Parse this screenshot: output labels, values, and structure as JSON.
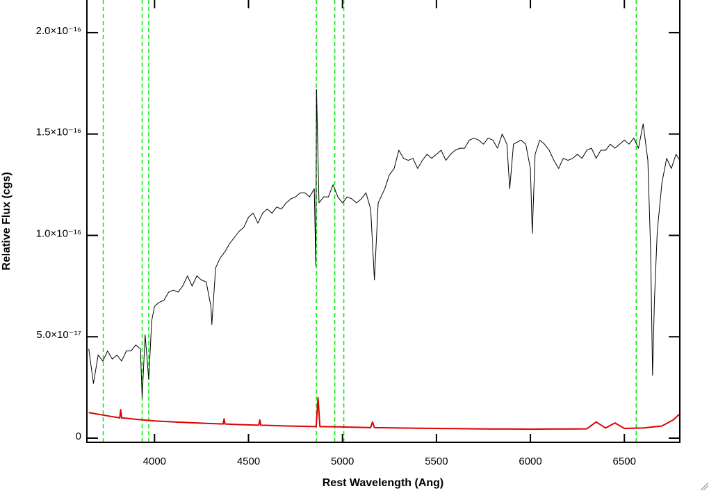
{
  "chart_data": {
    "type": "line",
    "xlabel": "Rest Wavelength (Ang)",
    "ylabel": "Relative Flux (cgs)",
    "xlim": [
      3640,
      6795
    ],
    "ylim": [
      -2.06e-18,
      2.161e-16
    ],
    "xticks": [
      4000,
      4500,
      5000,
      5500,
      6000,
      6500
    ],
    "yticks": [
      0,
      {
        "value": 5e-17,
        "label": "5.0×10⁻¹⁷"
      },
      {
        "value": 1e-16,
        "label": "1.0×10⁻¹⁶"
      },
      {
        "value": 1.5e-16,
        "label": "1.5×10⁻¹⁶"
      },
      {
        "value": 2e-16,
        "label": "2.0×10⁻¹⁶"
      }
    ],
    "series": [
      {
        "color": "#000000",
        "x": [
          3650,
          3675,
          3700,
          3725,
          3750,
          3775,
          3800,
          3825,
          3850,
          3875,
          3900,
          3925,
          3934,
          3950,
          3969,
          3985,
          4000,
          4025,
          4050,
          4075,
          4100,
          4125,
          4150,
          4175,
          4200,
          4225,
          4250,
          4275,
          4300,
          4305,
          4325,
          4350,
          4375,
          4400,
          4425,
          4450,
          4475,
          4500,
          4525,
          4550,
          4575,
          4600,
          4625,
          4650,
          4675,
          4700,
          4725,
          4750,
          4775,
          4800,
          4825,
          4850,
          4858,
          4862,
          4875,
          4900,
          4925,
          4950,
          4975,
          5000,
          5025,
          5050,
          5075,
          5100,
          5125,
          5150,
          5170,
          5190,
          5225,
          5250,
          5275,
          5300,
          5325,
          5350,
          5375,
          5400,
          5425,
          5450,
          5475,
          5500,
          5525,
          5550,
          5575,
          5600,
          5625,
          5650,
          5675,
          5700,
          5725,
          5750,
          5775,
          5800,
          5825,
          5850,
          5875,
          5890,
          5910,
          5950,
          5975,
          6000,
          6010,
          6025,
          6050,
          6075,
          6100,
          6125,
          6150,
          6175,
          6200,
          6225,
          6250,
          6275,
          6300,
          6325,
          6350,
          6375,
          6400,
          6425,
          6450,
          6475,
          6500,
          6525,
          6550,
          6575,
          6600,
          6625,
          6640,
          6650,
          6660,
          6675,
          6700,
          6725,
          6750,
          6775,
          6795
        ],
        "values": [
          4.4e-17,
          2.7e-17,
          4.1e-17,
          3.8e-17,
          4.3e-17,
          3.9e-17,
          4.1e-17,
          3.8e-17,
          4.3e-17,
          4.3e-17,
          4.6e-17,
          4.4e-17,
          2e-17,
          5.1e-17,
          2.9e-17,
          5.8e-17,
          6.5e-17,
          6.7e-17,
          6.8e-17,
          7.2e-17,
          7.3e-17,
          7.2e-17,
          7.5e-17,
          8e-17,
          7.5e-17,
          8e-17,
          7.8e-17,
          7.7e-17,
          6.5e-17,
          5.6e-17,
          8.4e-17,
          8.9e-17,
          9.2e-17,
          9.6e-17,
          9.9e-17,
          1.02e-16,
          1.04e-16,
          1.09e-16,
          1.11e-16,
          1.06e-16,
          1.11e-16,
          1.13e-16,
          1.11e-16,
          1.14e-16,
          1.13e-16,
          1.16e-16,
          1.18e-16,
          1.19e-16,
          1.21e-16,
          1.21e-16,
          1.19e-16,
          1.23e-16,
          8.5e-17,
          1.72e-16,
          1.16e-16,
          1.19e-16,
          1.19e-16,
          1.25e-16,
          1.19e-16,
          1.16e-16,
          1.19e-16,
          1.18e-16,
          1.16e-16,
          1.18e-16,
          1.21e-16,
          1.13e-16,
          7.8e-17,
          1.16e-16,
          1.23e-16,
          1.3e-16,
          1.33e-16,
          1.42e-16,
          1.38e-16,
          1.37e-16,
          1.38e-16,
          1.33e-16,
          1.37e-16,
          1.4e-16,
          1.38e-16,
          1.4e-16,
          1.42e-16,
          1.37e-16,
          1.4e-16,
          1.42e-16,
          1.43e-16,
          1.43e-16,
          1.47e-16,
          1.48e-16,
          1.47e-16,
          1.45e-16,
          1.48e-16,
          1.47e-16,
          1.43e-16,
          1.5e-16,
          1.45e-16,
          1.23e-16,
          1.45e-16,
          1.47e-16,
          1.45e-16,
          1.33e-16,
          1.01e-16,
          1.4e-16,
          1.47e-16,
          1.45e-16,
          1.42e-16,
          1.37e-16,
          1.33e-16,
          1.38e-16,
          1.37e-16,
          1.38e-16,
          1.4e-16,
          1.38e-16,
          1.42e-16,
          1.43e-16,
          1.38e-16,
          1.42e-16,
          1.42e-16,
          1.45e-16,
          1.43e-16,
          1.45e-16,
          1.47e-16,
          1.45e-16,
          1.48e-16,
          1.43e-16,
          1.55e-16,
          1.37e-16,
          9.2e-17,
          3.1e-17,
          6.8e-17,
          1.02e-16,
          1.26e-16,
          1.38e-16,
          1.33e-16,
          1.4e-16,
          1.37e-16
        ]
      },
      {
        "color": "#dd0000",
        "x": [
          3650,
          3750,
          3815,
          3820,
          3825,
          3850,
          3900,
          4000,
          4100,
          4200,
          4300,
          4365,
          4370,
          4375,
          4450,
          4555,
          4560,
          4565,
          4700,
          4860,
          4870,
          4880,
          4950,
          5050,
          5150,
          5160,
          5170,
          5300,
          5400,
          5500,
          5600,
          5700,
          5800,
          5900,
          6000,
          6100,
          6200,
          6300,
          6350,
          6400,
          6450,
          6500,
          6600,
          6700,
          6760,
          6795
        ],
        "values": [
          1.26e-17,
          1.1e-17,
          1e-17,
          1.4e-17,
          1e-17,
          9.8e-18,
          9.3e-18,
          8.5e-18,
          8e-18,
          7.6e-18,
          7.2e-18,
          7e-18,
          9.5e-18,
          7e-18,
          6.7e-18,
          6.4e-18,
          9e-18,
          6.4e-18,
          6e-18,
          5.7e-18,
          2e-17,
          5.7e-18,
          5.6e-18,
          5.4e-18,
          5.2e-18,
          8e-18,
          5.2e-18,
          5e-18,
          4.9e-18,
          4.8e-18,
          4.7e-18,
          4.6e-18,
          4.5e-18,
          4.5e-18,
          4.4e-18,
          4.5e-18,
          4.5e-18,
          4.6e-18,
          8e-18,
          5e-18,
          7.5e-18,
          4.8e-18,
          5e-18,
          6e-18,
          9e-18,
          1.2e-17
        ]
      }
    ],
    "vlines": {
      "color": "#00ee00",
      "values": [
        3727,
        3934,
        3969,
        4861,
        4959,
        5007,
        6563
      ]
    }
  }
}
